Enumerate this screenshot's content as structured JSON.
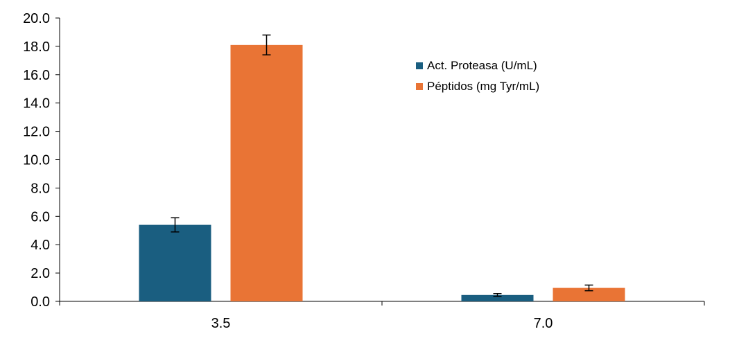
{
  "chart_data": {
    "type": "bar",
    "categories": [
      "3.5",
      "7.0"
    ],
    "series": [
      {
        "name": "Act. Proteasa (U/mL)",
        "values": [
          5.4,
          0.45
        ],
        "errors": [
          0.5,
          0.1
        ],
        "color": "#1a5e80"
      },
      {
        "name": "Péptidos (mg Tyr/mL)",
        "values": [
          18.1,
          0.95
        ],
        "errors": [
          0.7,
          0.2
        ],
        "color": "#e97435"
      }
    ],
    "ylim": [
      0,
      20
    ],
    "yticks": [
      "0.0",
      "2.0",
      "4.0",
      "6.0",
      "8.0",
      "10.0",
      "12.0",
      "14.0",
      "16.0",
      "18.0",
      "20.0"
    ],
    "title": "",
    "xlabel": "",
    "ylabel": "",
    "grid": false,
    "legend_position": "top-right"
  }
}
